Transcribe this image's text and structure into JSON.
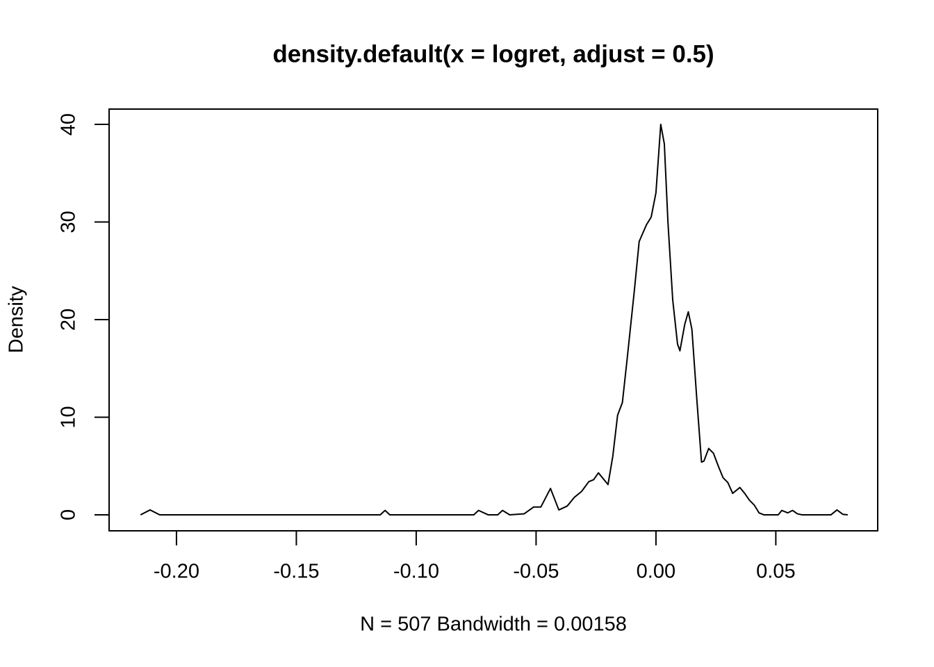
{
  "chart_data": {
    "type": "line",
    "title": "density.default(x = logret, adjust = 0.5)",
    "x_label": "N = 507   Bandwidth = 0.00158",
    "y_label": "Density",
    "color": "#000000",
    "xlim": [
      -0.2281,
      0.0925
    ],
    "ylim": [
      -1.64,
      41.57
    ],
    "xticks": [
      {
        "value": -0.2,
        "label": "-0.20"
      },
      {
        "value": -0.15,
        "label": "-0.15"
      },
      {
        "value": -0.1,
        "label": "-0.10"
      },
      {
        "value": -0.05,
        "label": "-0.05"
      },
      {
        "value": 0,
        "label": "0.00"
      },
      {
        "value": 0.05,
        "label": "0.05"
      }
    ],
    "yticks": [
      0,
      10,
      20,
      30,
      40
    ],
    "grid": false,
    "x": [
      -0.215,
      -0.211,
      -0.207,
      -0.115,
      -0.113,
      -0.111,
      -0.076,
      -0.074,
      -0.07,
      -0.066,
      -0.064,
      -0.061,
      -0.055,
      -0.051,
      -0.048,
      -0.044,
      -0.0405,
      -0.037,
      -0.034,
      -0.031,
      -0.028,
      -0.026,
      -0.024,
      -0.02,
      -0.018,
      -0.016,
      -0.014,
      -0.012,
      -0.009,
      -0.007,
      -0.004,
      -0.002,
      0.0,
      0.002,
      0.0035,
      0.005,
      0.007,
      0.009,
      0.01,
      0.012,
      0.0135,
      0.015,
      0.017,
      0.019,
      0.02,
      0.022,
      0.024,
      0.026,
      0.028,
      0.03,
      0.032,
      0.035,
      0.037,
      0.039,
      0.041,
      0.043,
      0.045,
      0.051,
      0.0525,
      0.055,
      0.057,
      0.059,
      0.061,
      0.073,
      0.0755,
      0.078,
      0.08
    ],
    "values": [
      0,
      0.5,
      0,
      0,
      0.45,
      0,
      0,
      0.45,
      0,
      0,
      0.45,
      0,
      0.1,
      0.8,
      0.8,
      2.7,
      0.5,
      0.9,
      1.8,
      2.4,
      3.4,
      3.6,
      4.3,
      3.1,
      6.0,
      10.2,
      11.5,
      16,
      23,
      28,
      29.7,
      30.5,
      33,
      40,
      38,
      30,
      22,
      17.5,
      16.8,
      19.5,
      20.8,
      19,
      12,
      5.4,
      5.5,
      6.8,
      6.3,
      5,
      3.8,
      3.3,
      2.2,
      2.8,
      2.2,
      1.5,
      1.0,
      0.2,
      0,
      0,
      0.45,
      0.2,
      0.45,
      0.1,
      0,
      0,
      0.5,
      0.05,
      0
    ]
  }
}
